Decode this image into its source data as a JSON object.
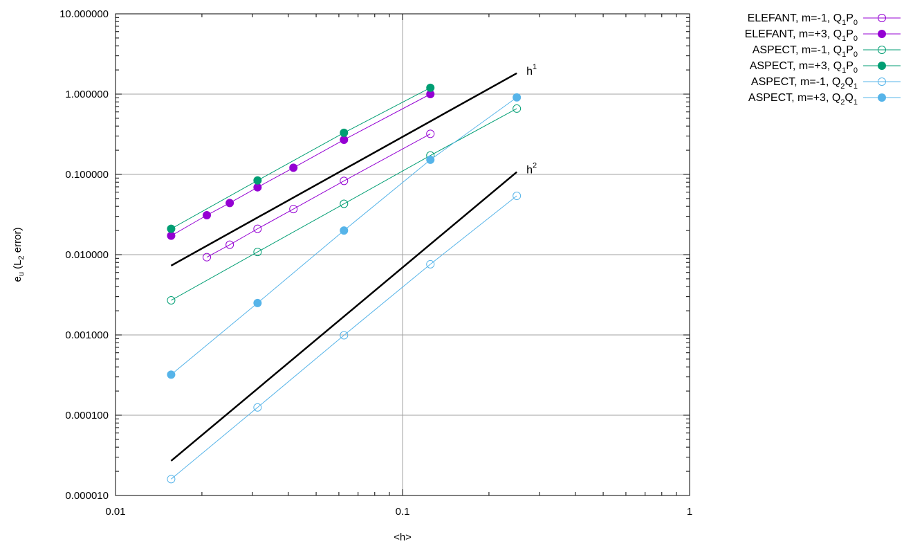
{
  "chart_data": {
    "type": "scatter",
    "xlabel": "<h>",
    "ylabel": {
      "main": "e",
      "sub": "u",
      "open": " (L",
      "sub2": "2",
      "close": " error)"
    },
    "xscale": "log",
    "yscale": "log",
    "xlim": [
      0.01,
      1
    ],
    "ylim": [
      1e-05,
      10
    ],
    "grid": true,
    "legend_position": "outside-right",
    "x_ticks": [
      "0.01",
      "0.1",
      "1"
    ],
    "y_ticks": [
      "0.000010",
      "0.000100",
      "0.001000",
      "0.010000",
      "0.100000",
      "1.000000",
      "10.000000"
    ],
    "series": [
      {
        "label": {
          "prefix": "ELEFANT, m=-1, ",
          "a": "Q",
          "a_sub": "1",
          "b": "P",
          "b_sub": "0"
        },
        "color": "#9400d3",
        "filled": false,
        "x": [
          0.0208,
          0.025,
          0.03125,
          0.04167,
          0.0625,
          0.125
        ],
        "y": [
          0.0093,
          0.0133,
          0.021,
          0.037,
          0.083,
          0.32
        ]
      },
      {
        "label": {
          "prefix": "ELEFANT, m=+3, ",
          "a": "Q",
          "a_sub": "1",
          "b": "P",
          "b_sub": "0"
        },
        "color": "#9400d3",
        "filled": true,
        "x": [
          0.015625,
          0.0208,
          0.025,
          0.03125,
          0.04167,
          0.0625,
          0.125
        ],
        "y": [
          0.0172,
          0.031,
          0.044,
          0.069,
          0.121,
          0.27,
          1.0
        ]
      },
      {
        "label": {
          "prefix": "ASPECT, m=-1, ",
          "a": "Q",
          "a_sub": "1",
          "b": "P",
          "b_sub": "0"
        },
        "color": "#009e73",
        "filled": false,
        "x": [
          0.015625,
          0.03125,
          0.0625,
          0.125,
          0.25
        ],
        "y": [
          0.0027,
          0.0108,
          0.043,
          0.172,
          0.66
        ]
      },
      {
        "label": {
          "prefix": "ASPECT, m=+3, ",
          "a": "Q",
          "a_sub": "1",
          "b": "P",
          "b_sub": "0"
        },
        "color": "#009e73",
        "filled": true,
        "x": [
          0.015625,
          0.03125,
          0.0625,
          0.125
        ],
        "y": [
          0.021,
          0.084,
          0.33,
          1.2
        ]
      },
      {
        "label": {
          "prefix": "ASPECT, m=-1, ",
          "a": "Q",
          "a_sub": "2",
          "b": "Q",
          "b_sub": "1"
        },
        "color": "#56b4e9",
        "filled": false,
        "x": [
          0.015625,
          0.03125,
          0.0625,
          0.125,
          0.25
        ],
        "y": [
          1.6e-05,
          0.000125,
          0.00099,
          0.0076,
          0.054
        ]
      },
      {
        "label": {
          "prefix": "ASPECT, m=+3, ",
          "a": "Q",
          "a_sub": "2",
          "b": "Q",
          "b_sub": "1"
        },
        "color": "#56b4e9",
        "filled": true,
        "x": [
          0.015625,
          0.03125,
          0.0625,
          0.125,
          0.25
        ],
        "y": [
          0.00032,
          0.0025,
          0.02,
          0.152,
          0.91
        ]
      }
    ],
    "reference_lines": [
      {
        "label": "h",
        "power": "1",
        "color": "#000000",
        "x": [
          0.015625,
          0.25
        ],
        "y": [
          0.0073,
          1.82
        ]
      },
      {
        "label": "h",
        "power": "2",
        "color": "#000000",
        "x": [
          0.015625,
          0.25
        ],
        "y": [
          2.7e-05,
          0.107
        ]
      }
    ]
  }
}
